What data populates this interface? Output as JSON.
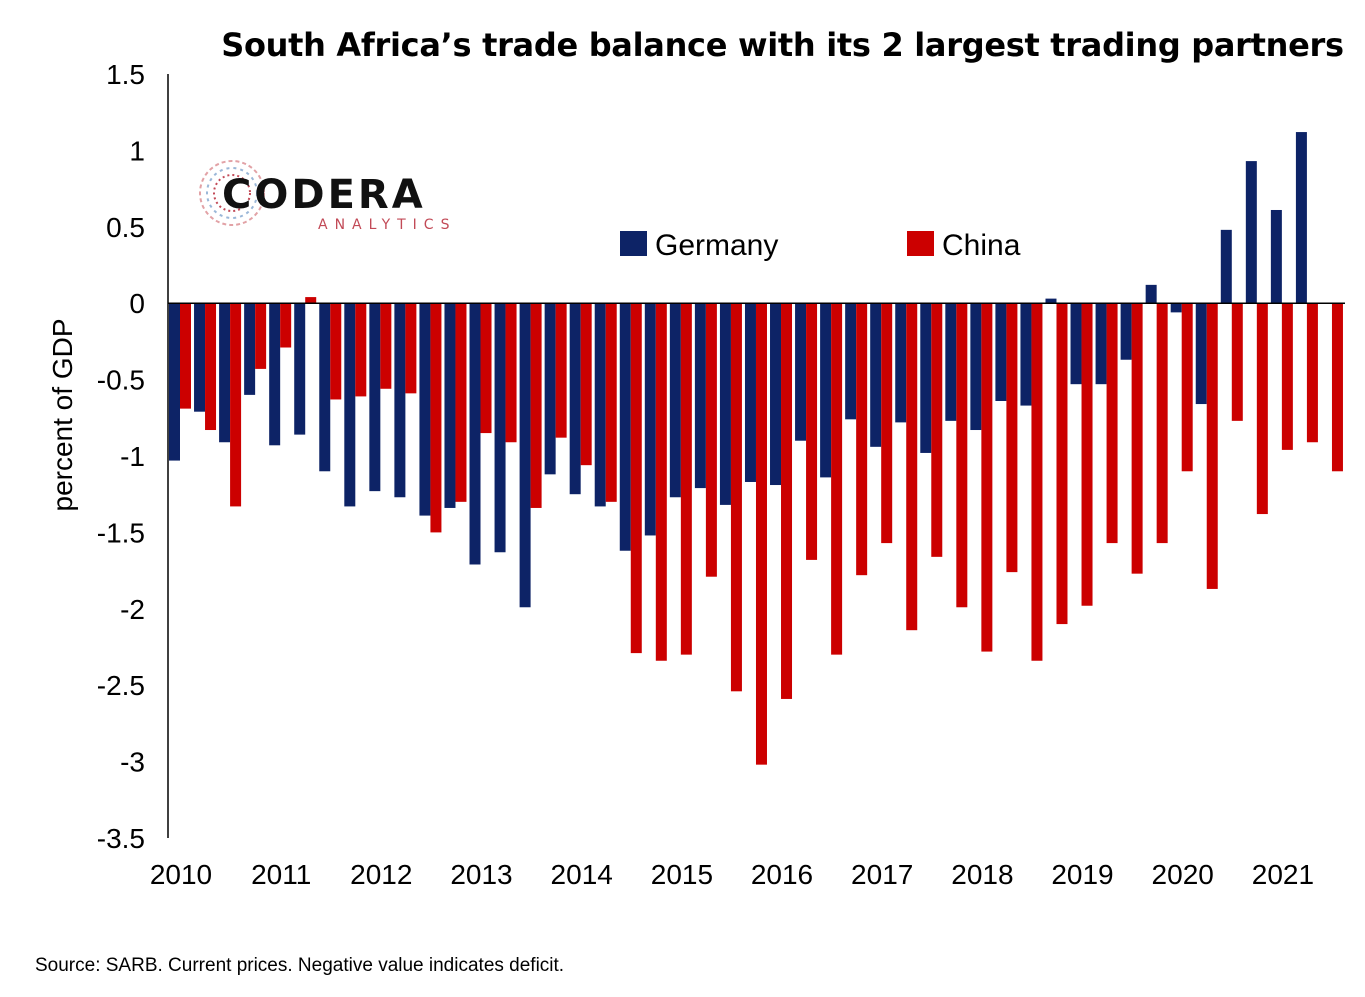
{
  "title": "South Africa’s trade balance with its 2 largest trading partners",
  "source_note": "Source: SARB. Current prices. Negative value indicates deficit.",
  "logo": {
    "main": "CODERA",
    "sub": "ANALYTICS"
  },
  "chart_data": {
    "type": "bar",
    "title": "South Africa’s trade balance with its 2 largest trading partners",
    "xlabel": "",
    "ylabel": "percent of GDP",
    "ylim": [
      -3.5,
      1.5
    ],
    "yticks": [
      "1.5",
      "1",
      "0.5",
      "0",
      "-0.5",
      "-1",
      "-1.5",
      "-2",
      "-2.5",
      "-3",
      "-3.5"
    ],
    "ytick_values": [
      1.5,
      1,
      0.5,
      0,
      -0.5,
      -1,
      -1.5,
      -2,
      -2.5,
      -3,
      -3.5
    ],
    "xtick_labels": [
      "2010",
      "2011",
      "2012",
      "2013",
      "2014",
      "2015",
      "2016",
      "2017",
      "2018",
      "2019",
      "2020",
      "2021"
    ],
    "legend_position": "top-center",
    "categories": [
      "2010Q1",
      "2010Q2",
      "2010Q3",
      "2010Q4",
      "2011Q1",
      "2011Q2",
      "2011Q3",
      "2011Q4",
      "2012Q1",
      "2012Q2",
      "2012Q3",
      "2012Q4",
      "2013Q1",
      "2013Q2",
      "2013Q3",
      "2013Q4",
      "2014Q1",
      "2014Q2",
      "2014Q3",
      "2014Q4",
      "2015Q1",
      "2015Q2",
      "2015Q3",
      "2015Q4",
      "2016Q1",
      "2016Q2",
      "2016Q3",
      "2016Q4",
      "2017Q1",
      "2017Q2",
      "2017Q3",
      "2017Q4",
      "2018Q1",
      "2018Q2",
      "2018Q3",
      "2018Q4",
      "2019Q1",
      "2019Q2",
      "2019Q3",
      "2019Q4",
      "2020Q1",
      "2020Q2",
      "2020Q3",
      "2020Q4",
      "2021Q1",
      "2021Q2",
      "2021Q3"
    ],
    "series": [
      {
        "name": "Germany",
        "color": "#0d2366",
        "values": [
          -1.03,
          -0.71,
          -0.91,
          -0.6,
          -0.93,
          -0.86,
          -1.1,
          -1.33,
          -1.23,
          -1.27,
          -1.39,
          -1.34,
          -1.71,
          -1.63,
          -1.99,
          -1.12,
          -1.25,
          -1.33,
          -1.62,
          -1.52,
          -1.27,
          -1.21,
          -1.32,
          -1.17,
          -1.19,
          -0.9,
          -1.14,
          -0.76,
          -0.94,
          -0.78,
          -0.98,
          -0.77,
          -0.83,
          -0.64,
          -0.67,
          0.03,
          -0.53,
          -0.53,
          -0.37,
          0.12,
          -0.06,
          -0.66,
          0.48,
          0.93,
          0.61,
          1.12,
          0.0
        ]
      },
      {
        "name": "China",
        "color": "#cc0000",
        "values": [
          -0.69,
          -0.83,
          -1.33,
          -0.43,
          -0.29,
          0.04,
          -0.63,
          -0.61,
          -0.56,
          -0.59,
          -1.5,
          -1.3,
          -0.85,
          -0.91,
          -1.34,
          -0.88,
          -1.06,
          -1.3,
          -2.29,
          -2.34,
          -2.3,
          -1.79,
          -2.54,
          -3.02,
          -2.59,
          -1.68,
          -2.3,
          -1.78,
          -1.57,
          -2.14,
          -1.66,
          -1.99,
          -2.28,
          -1.76,
          -2.34,
          -2.1,
          -1.98,
          -1.57,
          -1.77,
          -1.57,
          -1.1,
          -1.87,
          -0.77,
          -1.38,
          -0.96,
          -0.91,
          -1.1
        ]
      }
    ]
  }
}
